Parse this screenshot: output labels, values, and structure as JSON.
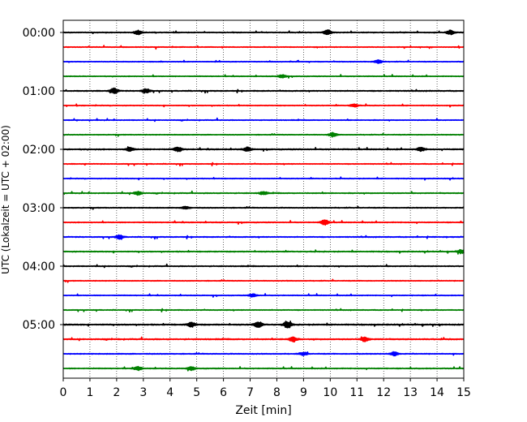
{
  "chart_data": {
    "type": "line",
    "xlabel": "Zeit  [min]",
    "ylabel": "UTC (Lokalzeit = UTC + 02:00)",
    "xlim": [
      0,
      15
    ],
    "x_ticks": [
      0,
      1,
      2,
      3,
      4,
      5,
      6,
      7,
      8,
      9,
      10,
      11,
      12,
      13,
      14,
      15
    ],
    "x_grid": "dotted vertical lines at each minute",
    "y_tick_labels": [
      "00:00",
      "01:00",
      "02:00",
      "03:00",
      "04:00",
      "05:00"
    ],
    "trace_interval_minutes": 15,
    "trace_colors": [
      "#000000",
      "#ff0000",
      "#0000ff",
      "#008000"
    ],
    "rows": [
      {
        "time": "00:00",
        "color": "#000000",
        "amplitude": 0.35,
        "events": [
          {
            "t": 2.8,
            "a": 0.8
          },
          {
            "t": 9.9,
            "a": 0.9
          },
          {
            "t": 14.5,
            "a": 0.8
          }
        ]
      },
      {
        "time": "00:15",
        "color": "#ff0000",
        "amplitude": 0.3,
        "events": []
      },
      {
        "time": "00:30",
        "color": "#0000ff",
        "amplitude": 0.3,
        "events": [
          {
            "t": 11.8,
            "a": 0.6
          }
        ]
      },
      {
        "time": "00:45",
        "color": "#008000",
        "amplitude": 0.3,
        "events": [
          {
            "t": 8.2,
            "a": 0.6
          }
        ]
      },
      {
        "time": "01:00",
        "color": "#000000",
        "amplitude": 0.4,
        "events": [
          {
            "t": 1.9,
            "a": 1.0
          },
          {
            "t": 3.1,
            "a": 0.8
          }
        ]
      },
      {
        "time": "01:15",
        "color": "#ff0000",
        "amplitude": 0.3,
        "events": [
          {
            "t": 10.9,
            "a": 0.6
          }
        ]
      },
      {
        "time": "01:30",
        "color": "#0000ff",
        "amplitude": 0.3,
        "events": []
      },
      {
        "time": "01:45",
        "color": "#008000",
        "amplitude": 0.3,
        "events": [
          {
            "t": 10.1,
            "a": 0.8
          }
        ]
      },
      {
        "time": "02:00",
        "color": "#000000",
        "amplitude": 0.45,
        "events": [
          {
            "t": 2.5,
            "a": 0.7
          },
          {
            "t": 4.3,
            "a": 0.9
          },
          {
            "t": 6.9,
            "a": 0.7
          },
          {
            "t": 13.4,
            "a": 0.7
          }
        ]
      },
      {
        "time": "02:15",
        "color": "#ff0000",
        "amplitude": 0.3,
        "events": []
      },
      {
        "time": "02:30",
        "color": "#0000ff",
        "amplitude": 0.3,
        "events": []
      },
      {
        "time": "02:45",
        "color": "#008000",
        "amplitude": 0.35,
        "events": [
          {
            "t": 2.8,
            "a": 0.7
          },
          {
            "t": 7.5,
            "a": 0.6
          }
        ]
      },
      {
        "time": "03:00",
        "color": "#000000",
        "amplitude": 0.35,
        "events": [
          {
            "t": 4.6,
            "a": 0.5
          }
        ]
      },
      {
        "time": "03:15",
        "color": "#ff0000",
        "amplitude": 0.35,
        "events": [
          {
            "t": 9.8,
            "a": 1.0
          }
        ]
      },
      {
        "time": "03:30",
        "color": "#0000ff",
        "amplitude": 0.35,
        "events": [
          {
            "t": 2.1,
            "a": 0.8
          }
        ]
      },
      {
        "time": "03:45",
        "color": "#008000",
        "amplitude": 0.4,
        "events": [
          {
            "t": 14.9,
            "a": 0.7
          }
        ]
      },
      {
        "time": "04:00",
        "color": "#000000",
        "amplitude": 0.35,
        "events": []
      },
      {
        "time": "04:15",
        "color": "#ff0000",
        "amplitude": 0.3,
        "events": []
      },
      {
        "time": "04:30",
        "color": "#0000ff",
        "amplitude": 0.3,
        "events": [
          {
            "t": 7.1,
            "a": 0.6
          }
        ]
      },
      {
        "time": "04:45",
        "color": "#008000",
        "amplitude": 0.3,
        "events": []
      },
      {
        "time": "05:00",
        "color": "#000000",
        "amplitude": 0.5,
        "events": [
          {
            "t": 4.8,
            "a": 0.9
          },
          {
            "t": 7.3,
            "a": 1.1
          },
          {
            "t": 8.4,
            "a": 1.3
          }
        ]
      },
      {
        "time": "05:15",
        "color": "#ff0000",
        "amplitude": 0.45,
        "events": [
          {
            "t": 8.6,
            "a": 1.0
          },
          {
            "t": 11.3,
            "a": 0.8
          }
        ]
      },
      {
        "time": "05:30",
        "color": "#0000ff",
        "amplitude": 0.35,
        "events": [
          {
            "t": 9.0,
            "a": 0.6
          },
          {
            "t": 12.4,
            "a": 0.8
          }
        ]
      },
      {
        "time": "05:45",
        "color": "#008000",
        "amplitude": 0.35,
        "events": [
          {
            "t": 2.8,
            "a": 0.7
          },
          {
            "t": 4.8,
            "a": 0.6
          }
        ]
      }
    ]
  }
}
